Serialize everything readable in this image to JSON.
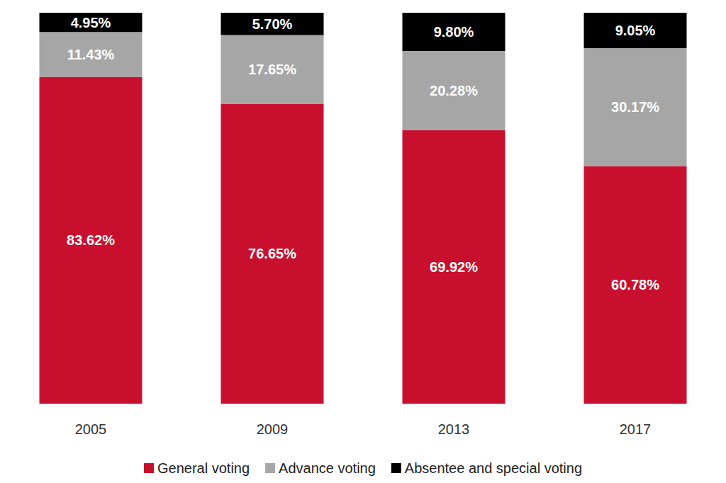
{
  "chart_data": {
    "type": "bar",
    "categories": [
      "2005",
      "2009",
      "2013",
      "2017"
    ],
    "series": [
      {
        "name": "General voting",
        "color": "#c8102e",
        "values": [
          83.62,
          76.65,
          69.92,
          60.78
        ],
        "value_labels": [
          "83.62%",
          "76.65%",
          "69.92%",
          "60.78%"
        ]
      },
      {
        "name": "Advance voting",
        "color": "#a6a6a6",
        "values": [
          11.43,
          17.65,
          20.28,
          30.17
        ],
        "value_labels": [
          "11.43%",
          "17.65%",
          "20.28%",
          "30.17%"
        ]
      },
      {
        "name": "Absentee and special voting",
        "color": "#000000",
        "values": [
          4.95,
          5.7,
          9.8,
          9.05
        ],
        "value_labels": [
          "4.95%",
          "5.70%",
          "9.80%",
          "9.05%"
        ]
      }
    ],
    "ylim": [
      0,
      100
    ],
    "yticks": [
      0,
      100
    ],
    "stacked": true,
    "data_labels": true,
    "legend": "bottom",
    "tick_labels": "x",
    "grid": false
  }
}
